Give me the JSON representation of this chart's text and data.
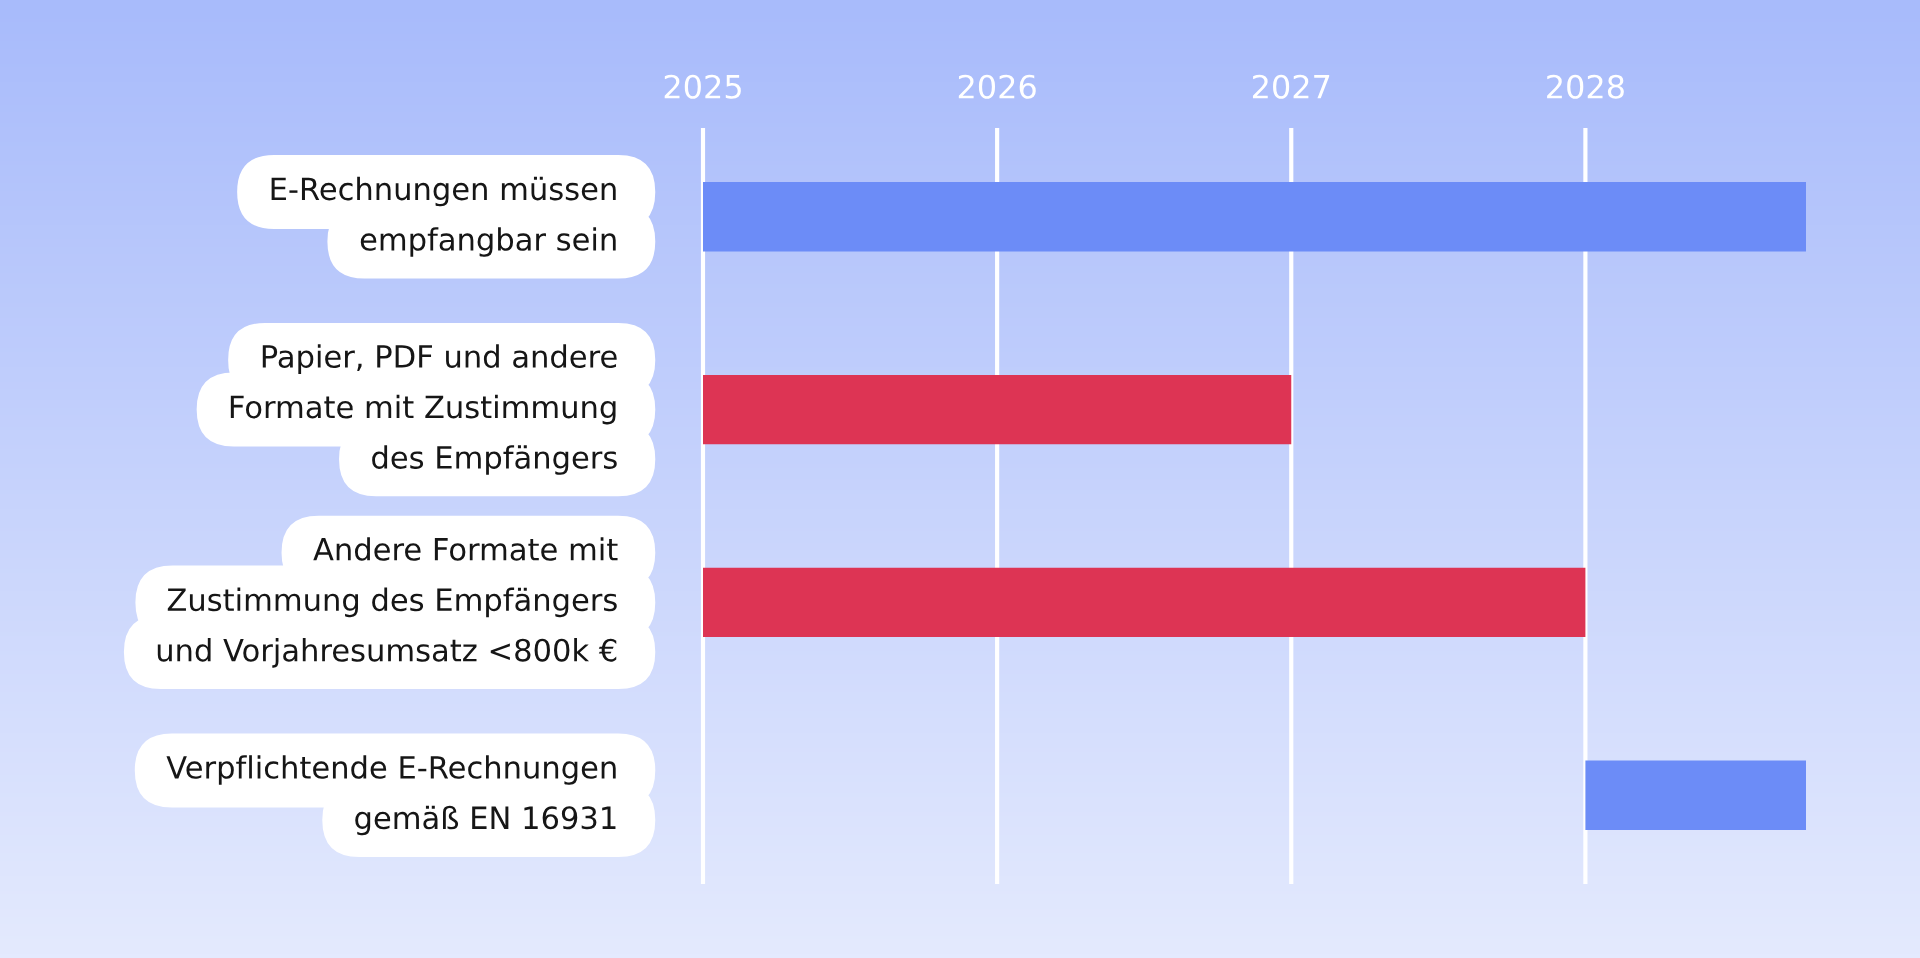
{
  "chart_data": {
    "type": "bar",
    "orientation": "horizontal",
    "categories": [
      "E-Rechnungen müssen\nempfangbar sein",
      "Papier, PDF und andere\nFormate mit Zustimmung\ndes Empfängers",
      "Andere Formate mit\nZustimmung des Empfängers\nund Vorjahresumsatz <800k €",
      "Verpflichtende E-Rechnungen\ngemäß EN 16931"
    ],
    "values": [
      3.75,
      2,
      3,
      0.75
    ],
    "base": [
      2025,
      2025,
      2025,
      2028
    ],
    "colors": [
      "#6c8cf7",
      "#dd3454",
      "#dd3454",
      "#6c8cf7"
    ],
    "xlim": [
      2025,
      2028.75
    ],
    "xticks": [
      2025,
      2026,
      2027,
      2028
    ],
    "grid": "x"
  }
}
